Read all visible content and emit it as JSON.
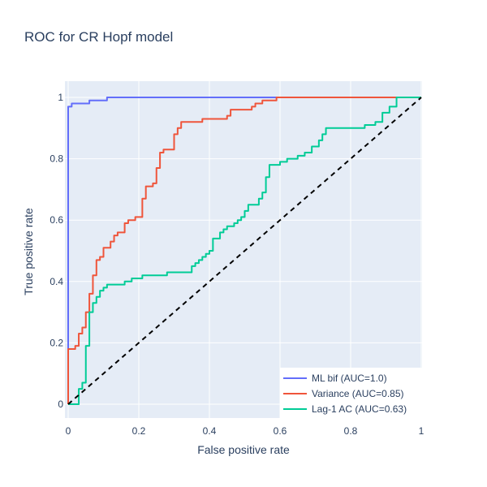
{
  "chart_data": {
    "type": "line",
    "title": "ROC for CR Hopf model",
    "xlabel": "False positive rate",
    "ylabel": "True positive rate",
    "xlim": [
      0,
      1
    ],
    "ylim": [
      0,
      1
    ],
    "grid": true,
    "legend_position": "bottom-right",
    "x_ticks": [
      "0",
      "0.2",
      "0.4",
      "0.6",
      "0.8",
      "1"
    ],
    "y_ticks": [
      "0",
      "0.2",
      "0.4",
      "0.6",
      "0.8",
      "1"
    ],
    "series": [
      {
        "name": "ML bif (AUC=1.0)",
        "color": "#636efa",
        "points": [
          [
            0,
            0
          ],
          [
            0,
            0.97
          ],
          [
            0.01,
            0.97
          ],
          [
            0.01,
            0.98
          ],
          [
            0.06,
            0.98
          ],
          [
            0.06,
            0.99
          ],
          [
            0.11,
            0.99
          ],
          [
            0.11,
            1.0
          ],
          [
            1,
            1
          ]
        ]
      },
      {
        "name": "Variance (AUC=0.85)",
        "color": "#ef553b",
        "points": [
          [
            0,
            0
          ],
          [
            0,
            0.18
          ],
          [
            0.02,
            0.18
          ],
          [
            0.02,
            0.19
          ],
          [
            0.03,
            0.19
          ],
          [
            0.03,
            0.23
          ],
          [
            0.04,
            0.23
          ],
          [
            0.04,
            0.25
          ],
          [
            0.05,
            0.25
          ],
          [
            0.05,
            0.3
          ],
          [
            0.06,
            0.3
          ],
          [
            0.06,
            0.36
          ],
          [
            0.07,
            0.36
          ],
          [
            0.07,
            0.42
          ],
          [
            0.08,
            0.42
          ],
          [
            0.08,
            0.47
          ],
          [
            0.09,
            0.47
          ],
          [
            0.09,
            0.48
          ],
          [
            0.1,
            0.48
          ],
          [
            0.1,
            0.51
          ],
          [
            0.12,
            0.51
          ],
          [
            0.12,
            0.53
          ],
          [
            0.13,
            0.53
          ],
          [
            0.13,
            0.55
          ],
          [
            0.14,
            0.55
          ],
          [
            0.14,
            0.56
          ],
          [
            0.16,
            0.56
          ],
          [
            0.16,
            0.59
          ],
          [
            0.17,
            0.59
          ],
          [
            0.17,
            0.6
          ],
          [
            0.19,
            0.6
          ],
          [
            0.19,
            0.61
          ],
          [
            0.21,
            0.61
          ],
          [
            0.21,
            0.67
          ],
          [
            0.22,
            0.67
          ],
          [
            0.22,
            0.71
          ],
          [
            0.24,
            0.71
          ],
          [
            0.24,
            0.72
          ],
          [
            0.25,
            0.72
          ],
          [
            0.25,
            0.77
          ],
          [
            0.26,
            0.77
          ],
          [
            0.26,
            0.82
          ],
          [
            0.27,
            0.82
          ],
          [
            0.27,
            0.83
          ],
          [
            0.3,
            0.83
          ],
          [
            0.3,
            0.88
          ],
          [
            0.31,
            0.88
          ],
          [
            0.31,
            0.9
          ],
          [
            0.32,
            0.9
          ],
          [
            0.32,
            0.92
          ],
          [
            0.38,
            0.92
          ],
          [
            0.38,
            0.93
          ],
          [
            0.45,
            0.93
          ],
          [
            0.45,
            0.94
          ],
          [
            0.46,
            0.94
          ],
          [
            0.46,
            0.96
          ],
          [
            0.52,
            0.96
          ],
          [
            0.52,
            0.97
          ],
          [
            0.53,
            0.97
          ],
          [
            0.53,
            0.98
          ],
          [
            0.55,
            0.98
          ],
          [
            0.55,
            0.99
          ],
          [
            0.59,
            0.99
          ],
          [
            0.59,
            1.0
          ],
          [
            1,
            1
          ]
        ]
      },
      {
        "name": "Lag-1 AC (AUC=0.63)",
        "color": "#00cc96",
        "points": [
          [
            0,
            0
          ],
          [
            0.03,
            0
          ],
          [
            0.03,
            0.05
          ],
          [
            0.04,
            0.05
          ],
          [
            0.04,
            0.07
          ],
          [
            0.05,
            0.07
          ],
          [
            0.05,
            0.19
          ],
          [
            0.06,
            0.19
          ],
          [
            0.06,
            0.3
          ],
          [
            0.07,
            0.3
          ],
          [
            0.07,
            0.33
          ],
          [
            0.08,
            0.33
          ],
          [
            0.08,
            0.35
          ],
          [
            0.09,
            0.35
          ],
          [
            0.09,
            0.37
          ],
          [
            0.1,
            0.37
          ],
          [
            0.1,
            0.38
          ],
          [
            0.11,
            0.38
          ],
          [
            0.11,
            0.39
          ],
          [
            0.16,
            0.39
          ],
          [
            0.16,
            0.4
          ],
          [
            0.18,
            0.4
          ],
          [
            0.18,
            0.41
          ],
          [
            0.21,
            0.41
          ],
          [
            0.21,
            0.42
          ],
          [
            0.28,
            0.42
          ],
          [
            0.28,
            0.43
          ],
          [
            0.35,
            0.43
          ],
          [
            0.35,
            0.45
          ],
          [
            0.36,
            0.45
          ],
          [
            0.36,
            0.46
          ],
          [
            0.37,
            0.46
          ],
          [
            0.37,
            0.47
          ],
          [
            0.38,
            0.47
          ],
          [
            0.38,
            0.48
          ],
          [
            0.39,
            0.48
          ],
          [
            0.39,
            0.49
          ],
          [
            0.4,
            0.49
          ],
          [
            0.4,
            0.5
          ],
          [
            0.41,
            0.5
          ],
          [
            0.41,
            0.54
          ],
          [
            0.43,
            0.54
          ],
          [
            0.43,
            0.56
          ],
          [
            0.44,
            0.56
          ],
          [
            0.44,
            0.57
          ],
          [
            0.45,
            0.57
          ],
          [
            0.45,
            0.58
          ],
          [
            0.47,
            0.58
          ],
          [
            0.47,
            0.59
          ],
          [
            0.48,
            0.59
          ],
          [
            0.48,
            0.6
          ],
          [
            0.49,
            0.6
          ],
          [
            0.49,
            0.61
          ],
          [
            0.5,
            0.61
          ],
          [
            0.5,
            0.63
          ],
          [
            0.51,
            0.63
          ],
          [
            0.51,
            0.65
          ],
          [
            0.54,
            0.65
          ],
          [
            0.54,
            0.67
          ],
          [
            0.55,
            0.67
          ],
          [
            0.55,
            0.69
          ],
          [
            0.56,
            0.69
          ],
          [
            0.56,
            0.74
          ],
          [
            0.57,
            0.74
          ],
          [
            0.57,
            0.78
          ],
          [
            0.6,
            0.78
          ],
          [
            0.6,
            0.79
          ],
          [
            0.62,
            0.79
          ],
          [
            0.62,
            0.8
          ],
          [
            0.65,
            0.8
          ],
          [
            0.65,
            0.81
          ],
          [
            0.67,
            0.81
          ],
          [
            0.67,
            0.82
          ],
          [
            0.69,
            0.82
          ],
          [
            0.69,
            0.84
          ],
          [
            0.71,
            0.84
          ],
          [
            0.71,
            0.86
          ],
          [
            0.72,
            0.86
          ],
          [
            0.72,
            0.88
          ],
          [
            0.73,
            0.88
          ],
          [
            0.73,
            0.9
          ],
          [
            0.84,
            0.9
          ],
          [
            0.84,
            0.91
          ],
          [
            0.87,
            0.91
          ],
          [
            0.87,
            0.92
          ],
          [
            0.89,
            0.92
          ],
          [
            0.89,
            0.95
          ],
          [
            0.91,
            0.95
          ],
          [
            0.91,
            0.97
          ],
          [
            0.93,
            0.97
          ],
          [
            0.93,
            1.0
          ],
          [
            1,
            1
          ]
        ]
      },
      {
        "name": "",
        "color": "#000000",
        "dash": "6,5",
        "points": [
          [
            0,
            0
          ],
          [
            1,
            1
          ]
        ]
      }
    ]
  }
}
